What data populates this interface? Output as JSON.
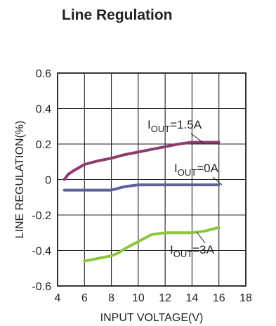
{
  "chart_data": {
    "type": "line",
    "title": "Line Regulation",
    "xlabel": "INPUT VOLTAGE(V)",
    "ylabel": "LINE REGULATION(%)",
    "xlim": [
      4,
      18
    ],
    "ylim": [
      -0.6,
      0.6
    ],
    "x_ticks": [
      "4",
      "6",
      "8",
      "10",
      "12",
      "14",
      "16",
      "18"
    ],
    "y_ticks": [
      "-0.6",
      "-0.4",
      "-0.2",
      "0",
      "0.2",
      "0.4",
      "0.6"
    ],
    "grid": true,
    "series": [
      {
        "name": "I_OUT=1.5A",
        "label_main": "I",
        "label_sub": "OUT",
        "label_tail": "=1.5A",
        "color": "#8e3b6e",
        "x": [
          4.5,
          4.8,
          5.2,
          6,
          7,
          8,
          9,
          10,
          11,
          12,
          13,
          14,
          15,
          16
        ],
        "y": [
          0.0,
          0.03,
          0.05,
          0.085,
          0.105,
          0.12,
          0.14,
          0.155,
          0.17,
          0.185,
          0.2,
          0.21,
          0.21,
          0.21
        ]
      },
      {
        "name": "I_OUT=0A",
        "label_main": "I",
        "label_sub": "OUT",
        "label_tail": "=0A",
        "color": "#5c6397",
        "x": [
          4.5,
          6,
          8,
          8.5,
          9,
          10,
          12,
          14,
          16
        ],
        "y": [
          -0.06,
          -0.06,
          -0.06,
          -0.05,
          -0.04,
          -0.03,
          -0.03,
          -0.03,
          -0.03
        ]
      },
      {
        "name": "I_OUT=3A",
        "label_main": "I",
        "label_sub": "OUT",
        "label_tail": "=3A",
        "color": "#8cc63f",
        "x": [
          6,
          7,
          8,
          8.5,
          9,
          9.5,
          10,
          11,
          12,
          13,
          14,
          15,
          16
        ],
        "y": [
          -0.46,
          -0.445,
          -0.43,
          -0.415,
          -0.39,
          -0.37,
          -0.35,
          -0.31,
          -0.3,
          -0.3,
          -0.3,
          -0.29,
          -0.27
        ]
      }
    ]
  }
}
